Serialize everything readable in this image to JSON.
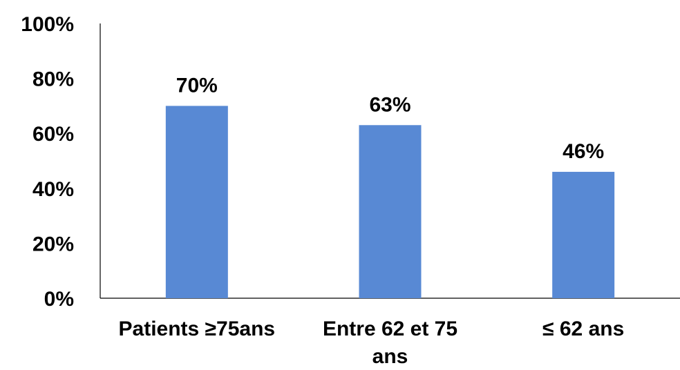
{
  "chart_data": {
    "type": "bar",
    "categories": [
      "Patients ≥75ans",
      "Entre 62 et 75 ans",
      "≤ 62 ans"
    ],
    "category_lines": [
      [
        "Patients ≥75ans"
      ],
      [
        "Entre 62 et 75",
        "ans"
      ],
      [
        "≤ 62 ans"
      ]
    ],
    "values": [
      70,
      63,
      46
    ],
    "data_labels": [
      "70%",
      "63%",
      "46%"
    ],
    "y_ticks": [
      "0%",
      "20%",
      "40%",
      "60%",
      "80%",
      "100%"
    ],
    "ylim": [
      0,
      100
    ],
    "grid": false,
    "legend": "none",
    "bar_color": "#5889d4",
    "title": "",
    "xlabel": "",
    "ylabel": ""
  }
}
